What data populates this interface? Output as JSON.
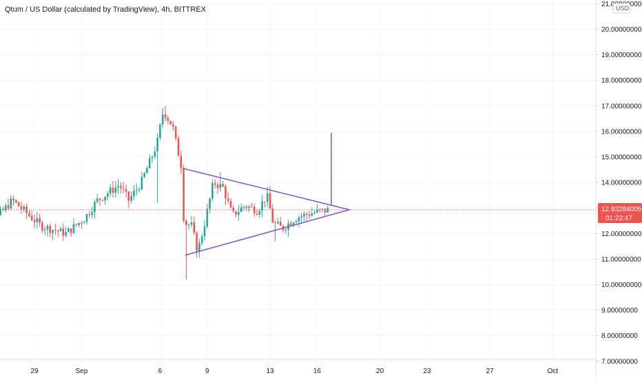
{
  "chart_data": {
    "type": "candlestick",
    "title": "Qtum / US Dollar (calculated by TradingView), 4h, BITTREX",
    "currency_unit": "USD",
    "ylim": [
      7,
      21
    ],
    "y_ticks": [
      {
        "value": 21,
        "label": "21.00000000"
      },
      {
        "value": 20,
        "label": "20.00000000"
      },
      {
        "value": 19,
        "label": "19.00000000"
      },
      {
        "value": 18,
        "label": "18.00000000"
      },
      {
        "value": 17,
        "label": "17.00000000"
      },
      {
        "value": 16,
        "label": "16.00000000"
      },
      {
        "value": 15,
        "label": "15.00000000"
      },
      {
        "value": 14,
        "label": "14.00000000"
      },
      {
        "value": 13,
        "label": "13.00000000"
      },
      {
        "value": 12,
        "label": "12.00000000"
      },
      {
        "value": 11,
        "label": "11.00000000"
      },
      {
        "value": 10,
        "label": "10.00000000"
      },
      {
        "value": 9,
        "label": "9.00000000"
      },
      {
        "value": 8,
        "label": "8.00000000"
      },
      {
        "value": 7,
        "label": "7.00000000"
      }
    ],
    "x_ticks": [
      {
        "day": 29,
        "label": "29"
      },
      {
        "day": 32,
        "label": "Sep"
      },
      {
        "day": 37,
        "label": "6"
      },
      {
        "day": 40,
        "label": "9"
      },
      {
        "day": 44,
        "label": "13"
      },
      {
        "day": 47,
        "label": "16"
      },
      {
        "day": 51,
        "label": "20"
      },
      {
        "day": 54,
        "label": "23"
      },
      {
        "day": 58,
        "label": "27"
      },
      {
        "day": 62,
        "label": "Oct"
      }
    ],
    "last_price": {
      "value": 12.93284005,
      "label": "12.93284005",
      "countdown": "01:22:47"
    },
    "colors": {
      "up": "#26a69a",
      "down": "#ef5350",
      "drawing": "#7e57c2",
      "price_line": "#ef5350"
    },
    "candle_days": {
      "start": 25.0,
      "end": 47.8
    },
    "waypoints": [
      {
        "day": 25.0,
        "price": 11.6
      },
      {
        "day": 26.4,
        "price": 12.5
      },
      {
        "day": 27.6,
        "price": 13.3
      },
      {
        "day": 29.4,
        "price": 12.3
      },
      {
        "day": 31.0,
        "price": 12.0
      },
      {
        "day": 32.2,
        "price": 12.6
      },
      {
        "day": 33.0,
        "price": 13.3
      },
      {
        "day": 34.4,
        "price": 13.9
      },
      {
        "day": 35.0,
        "price": 13.3
      },
      {
        "day": 35.8,
        "price": 14.0
      },
      {
        "day": 36.8,
        "price": 15.5
      },
      {
        "day": 37.2,
        "price": 16.8
      },
      {
        "day": 37.8,
        "price": 16.2
      },
      {
        "day": 38.0,
        "price": 15.6
      },
      {
        "day": 38.4,
        "price": 14.5
      },
      {
        "day": 38.6,
        "price": 12.4
      },
      {
        "day": 39.0,
        "price": 12.3
      },
      {
        "day": 39.4,
        "price": 11.3
      },
      {
        "day": 39.8,
        "price": 12.3
      },
      {
        "day": 40.4,
        "price": 14.0
      },
      {
        "day": 41.0,
        "price": 13.8
      },
      {
        "day": 41.6,
        "price": 12.7
      },
      {
        "day": 42.4,
        "price": 13.1
      },
      {
        "day": 43.2,
        "price": 12.9
      },
      {
        "day": 43.8,
        "price": 13.5
      },
      {
        "day": 44.2,
        "price": 12.4
      },
      {
        "day": 44.8,
        "price": 12.2
      },
      {
        "day": 45.6,
        "price": 12.6
      },
      {
        "day": 46.6,
        "price": 12.8
      },
      {
        "day": 47.8,
        "price": 12.93
      }
    ],
    "drawings": {
      "triangle": [
        {
          "day": 38.45,
          "price": 14.55
        },
        {
          "day": 49.05,
          "price": 12.93
        },
        {
          "day": 38.6,
          "price": 11.15
        }
      ],
      "pole": [
        {
          "day": 47.9,
          "price": 13.1
        },
        {
          "day": 47.9,
          "price": 15.95
        }
      ]
    }
  }
}
